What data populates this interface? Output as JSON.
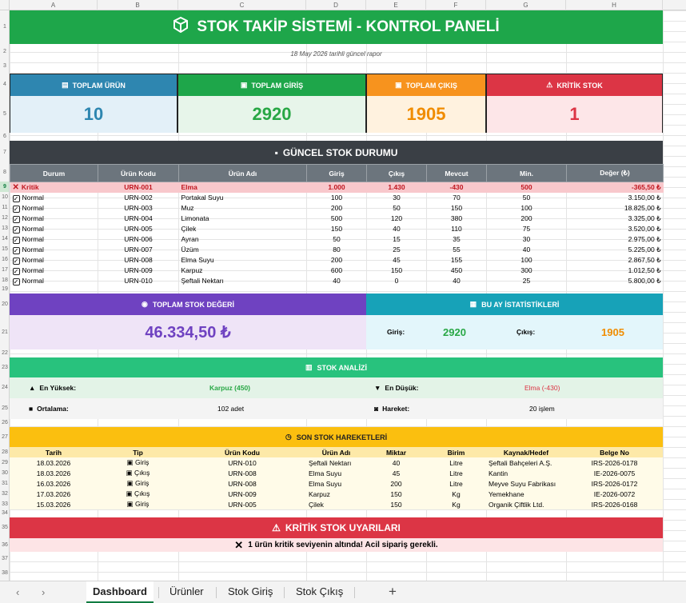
{
  "columns": [
    "A",
    "B",
    "C",
    "D",
    "E",
    "F",
    "G",
    "H"
  ],
  "rows": [
    "1",
    "2",
    "3",
    "4",
    "5",
    "6",
    "7",
    "8",
    "9",
    "10",
    "11",
    "12",
    "13",
    "14",
    "15",
    "16",
    "17",
    "18",
    "19",
    "20",
    "21",
    "22",
    "23",
    "24",
    "25",
    "26",
    "27",
    "28",
    "29",
    "30",
    "31",
    "32",
    "33",
    "34",
    "35",
    "36",
    "37",
    "38"
  ],
  "title": "STOK TAKİP SİSTEMİ - KONTROL PANELİ",
  "subtitle": "18 May 2026 tarihli güncel rapor",
  "cards": [
    {
      "label": "TOPLAM ÜRÜN",
      "value": "10",
      "header_color": "#2e86b0",
      "body_color": "#e3f0f8",
      "value_color": "#2e86b0",
      "icon": "clipboard-icon"
    },
    {
      "label": "TOPLAM GİRİŞ",
      "value": "2920",
      "header_color": "#1ea64a",
      "body_color": "#e7f5ea",
      "value_color": "#28a745",
      "icon": "inbox-icon"
    },
    {
      "label": "TOPLAM ÇIKIŞ",
      "value": "1905",
      "header_color": "#f7931e",
      "body_color": "#fff2df",
      "value_color": "#f08c00",
      "icon": "outbox-icon"
    },
    {
      "label": "KRİTİK STOK",
      "value": "1",
      "header_color": "#dc3545",
      "body_color": "#fde6e8",
      "value_color": "#dc3545",
      "icon": "warning-icon"
    }
  ],
  "stock_section": {
    "title": "GÜNCEL STOK DURUMU",
    "headers": [
      "Durum",
      "Ürün Kodu",
      "Ürün Adı",
      "Giriş",
      "Çıkış",
      "Mevcut",
      "Min.",
      "Değer (₺)"
    ],
    "rows": [
      {
        "status": "Kritik",
        "code": "URN-001",
        "name": "Elma",
        "in": "1.000",
        "out": "1.430",
        "stock": "-430",
        "min": "500",
        "value": "-365,50 ₺",
        "critical": true
      },
      {
        "status": "Normal",
        "code": "URN-002",
        "name": "Portakal Suyu",
        "in": "100",
        "out": "30",
        "stock": "70",
        "min": "50",
        "value": "3.150,00 ₺"
      },
      {
        "status": "Normal",
        "code": "URN-003",
        "name": "Muz",
        "in": "200",
        "out": "50",
        "stock": "150",
        "min": "100",
        "value": "18.825,00 ₺"
      },
      {
        "status": "Normal",
        "code": "URN-004",
        "name": "Limonata",
        "in": "500",
        "out": "120",
        "stock": "380",
        "min": "200",
        "value": "3.325,00 ₺"
      },
      {
        "status": "Normal",
        "code": "URN-005",
        "name": "Çilek",
        "in": "150",
        "out": "40",
        "stock": "110",
        "min": "75",
        "value": "3.520,00 ₺"
      },
      {
        "status": "Normal",
        "code": "URN-006",
        "name": "Ayran",
        "in": "50",
        "out": "15",
        "stock": "35",
        "min": "30",
        "value": "2.975,00 ₺"
      },
      {
        "status": "Normal",
        "code": "URN-007",
        "name": "Üzüm",
        "in": "80",
        "out": "25",
        "stock": "55",
        "min": "40",
        "value": "5.225,00 ₺"
      },
      {
        "status": "Normal",
        "code": "URN-008",
        "name": "Elma Suyu",
        "in": "200",
        "out": "45",
        "stock": "155",
        "min": "100",
        "value": "2.867,50 ₺"
      },
      {
        "status": "Normal",
        "code": "URN-009",
        "name": "Karpuz",
        "in": "600",
        "out": "150",
        "stock": "450",
        "min": "300",
        "value": "1.012,50 ₺"
      },
      {
        "status": "Normal",
        "code": "URN-010",
        "name": "Şeftali Nektarı",
        "in": "40",
        "out": "0",
        "stock": "40",
        "min": "25",
        "value": "5.800,00 ₺"
      }
    ]
  },
  "total_value": {
    "label": "TOPLAM STOK DEĞERİ",
    "value": "46.334,50 ₺"
  },
  "monthly": {
    "label": "BU AY İSTATİSTİKLERİ",
    "in_label": "Giriş:",
    "in_value": "2920",
    "out_label": "Çıkış:",
    "out_value": "1905"
  },
  "analysis": {
    "title": "STOK ANALİZİ",
    "highest_label": "En Yüksek:",
    "highest_value": "Karpuz (450)",
    "lowest_label": "En Düşük:",
    "lowest_value": "Elma (-430)",
    "avg_label": "Ortalama:",
    "avg_value": "102 adet",
    "move_label": "Hareket:",
    "move_value": "20 işlem"
  },
  "movements": {
    "title": "SON STOK HAREKETLERİ",
    "headers": [
      "Tarih",
      "Tip",
      "Ürün Kodu",
      "Ürün Adı",
      "Miktar",
      "Birim",
      "Kaynak/Hedef",
      "Belge No"
    ],
    "rows": [
      {
        "date": "18.03.2026",
        "type": "Giriş",
        "code": "URN-010",
        "name": "Şeftali Nektarı",
        "qty": "40",
        "unit": "Litre",
        "src": "Şeftali Bahçeleri A.Ş.",
        "doc": "IRS-2026-0178"
      },
      {
        "date": "18.03.2026",
        "type": "Çıkış",
        "code": "URN-008",
        "name": "Elma Suyu",
        "qty": "45",
        "unit": "Litre",
        "src": "Kantin",
        "doc": "IE-2026-0075"
      },
      {
        "date": "16.03.2026",
        "type": "Giriş",
        "code": "URN-008",
        "name": "Elma Suyu",
        "qty": "200",
        "unit": "Litre",
        "src": "Meyve Suyu Fabrikası",
        "doc": "IRS-2026-0172"
      },
      {
        "date": "17.03.2026",
        "type": "Çıkış",
        "code": "URN-009",
        "name": "Karpuz",
        "qty": "150",
        "unit": "Kg",
        "src": "Yemekhane",
        "doc": "IE-2026-0072"
      },
      {
        "date": "15.03.2026",
        "type": "Giriş",
        "code": "URN-005",
        "name": "Çilek",
        "qty": "150",
        "unit": "Kg",
        "src": "Organik Çiftlik Ltd.",
        "doc": "IRS-2026-0168"
      }
    ]
  },
  "critical": {
    "title": "KRİTİK STOK UYARILARI",
    "message": "1 ürün kritik seviyenin altında! Acil sipariş gerekli."
  },
  "sheet_tabs": [
    "Dashboard",
    "Ürünler",
    "Stok Giriş",
    "Stok Çıkış"
  ]
}
